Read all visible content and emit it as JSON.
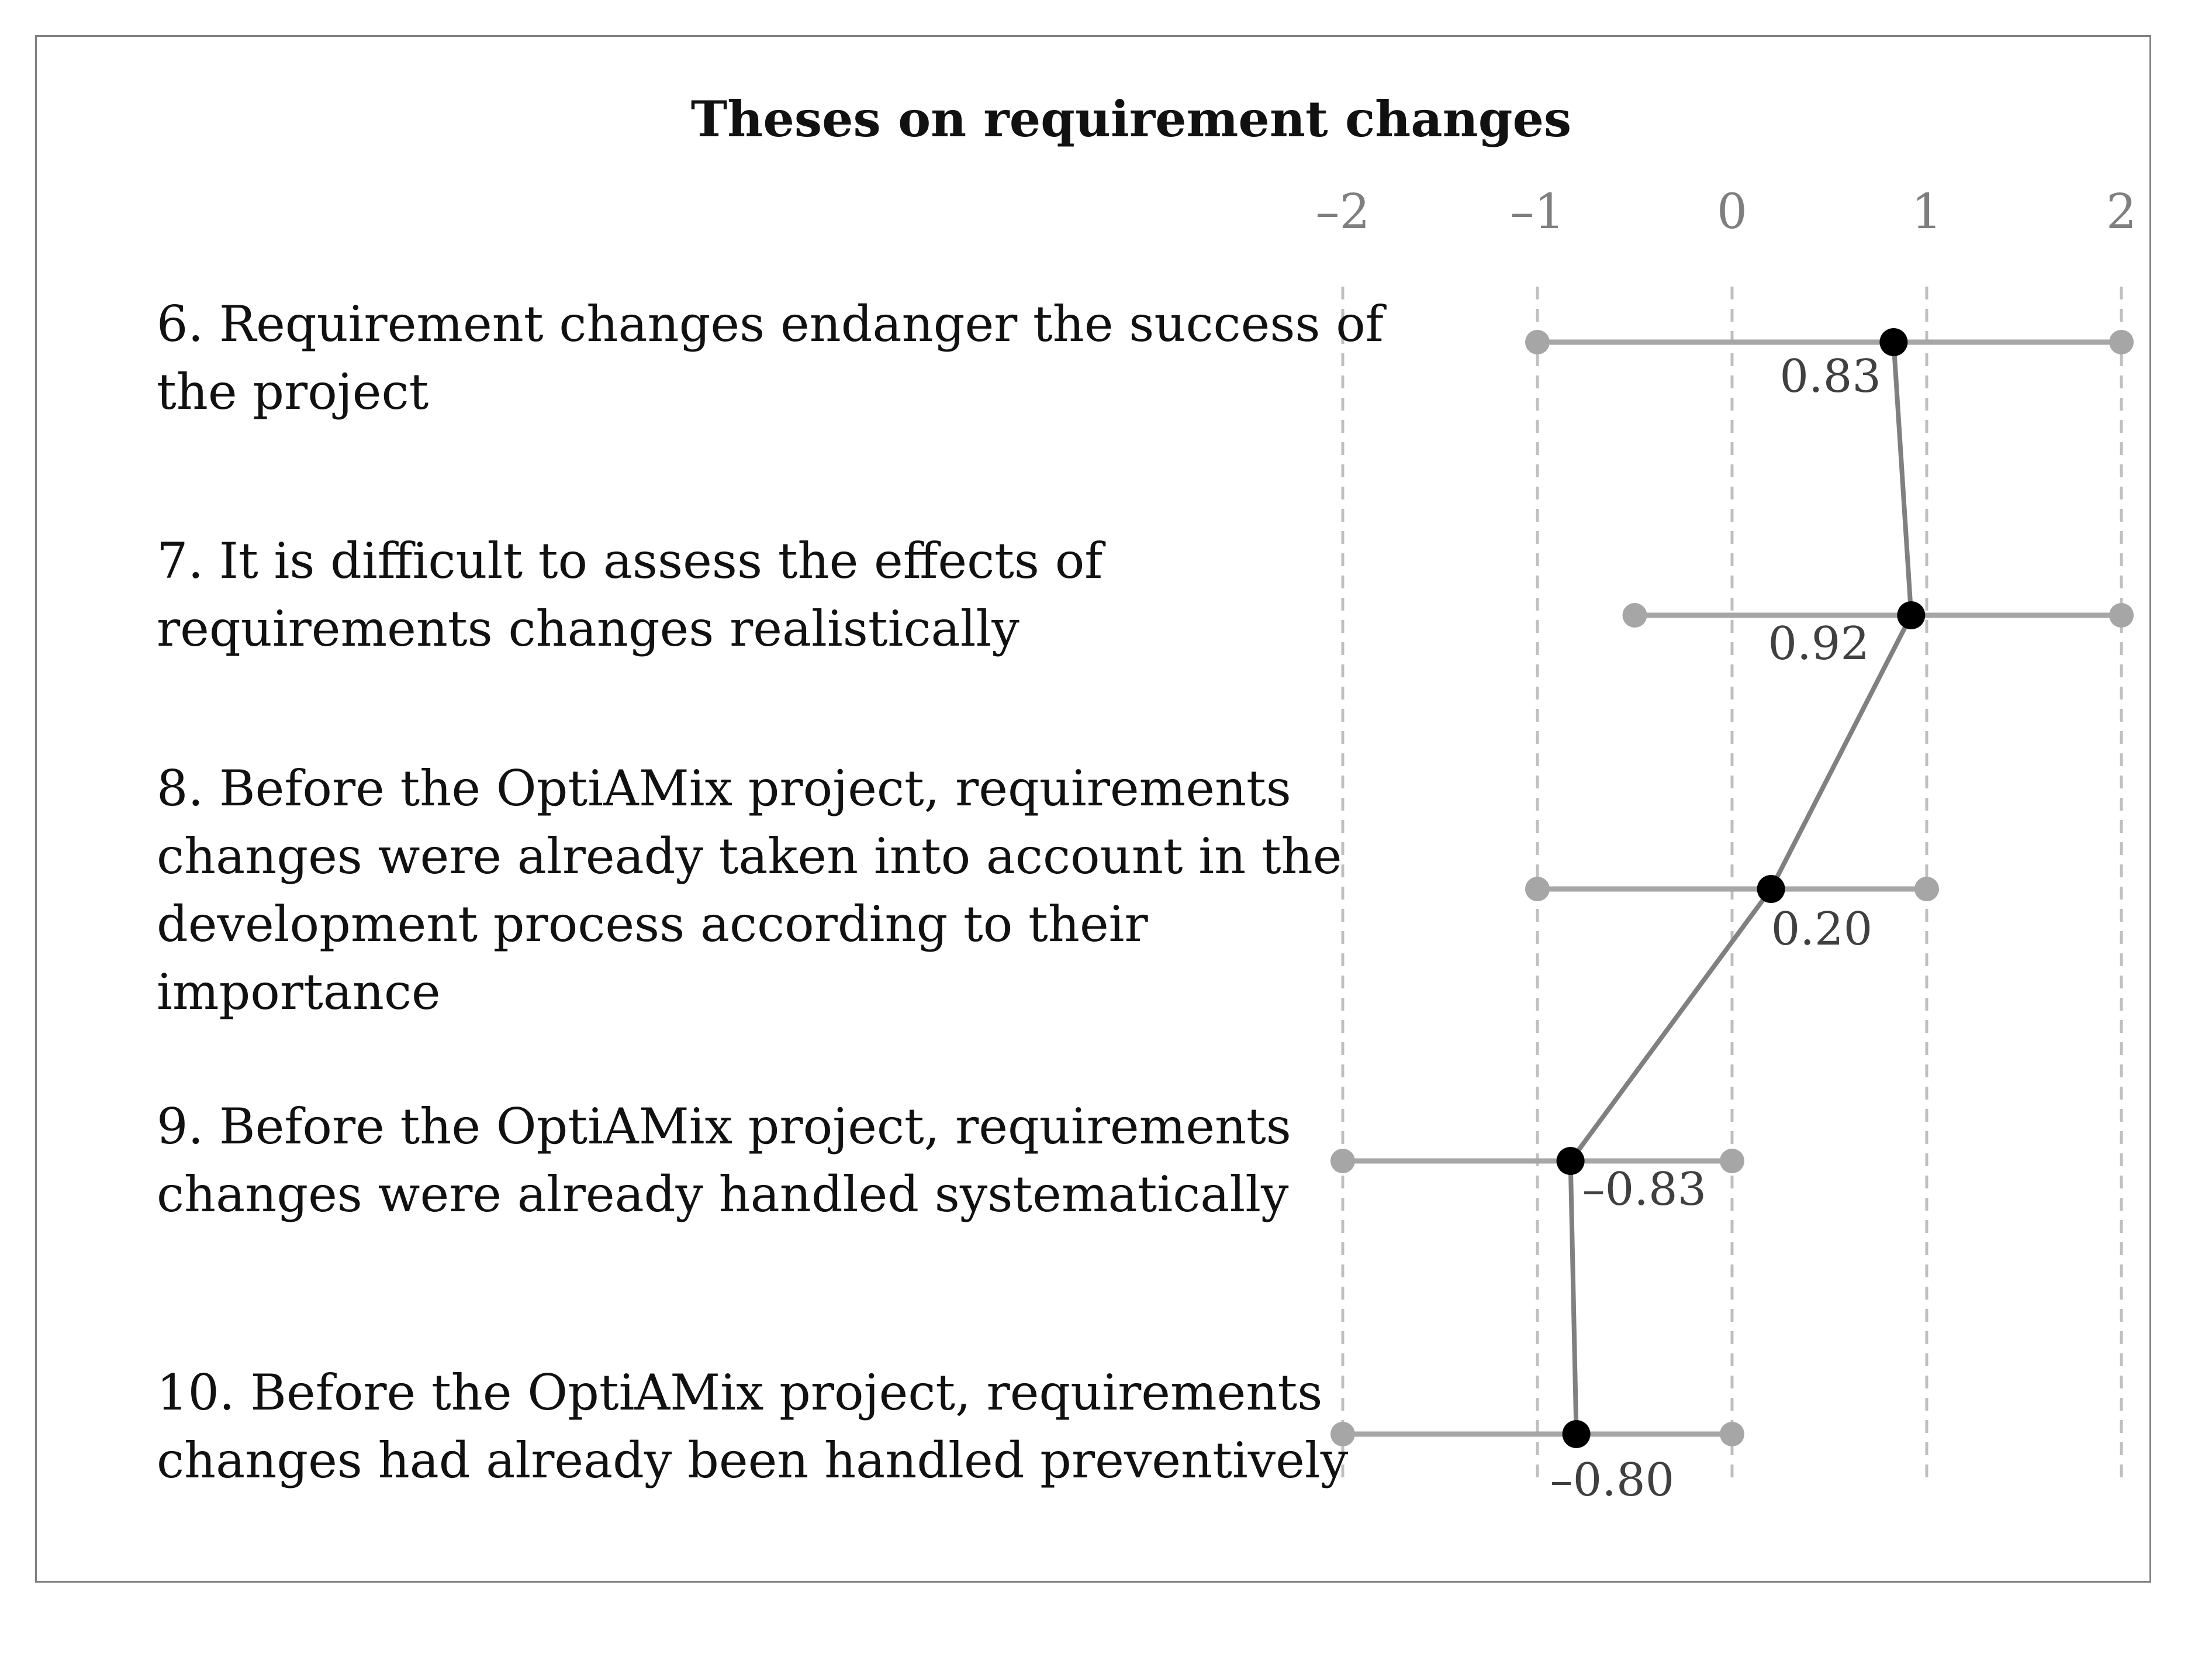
{
  "chart_data": {
    "type": "dot-range",
    "title": "Theses on requirement changes",
    "xlim": [
      -2,
      2
    ],
    "x_ticks": [
      -2,
      -1,
      0,
      1,
      2
    ],
    "x_tick_labels": [
      "–2",
      "–1",
      "0",
      "1",
      "2"
    ],
    "grid": "vertical dashed at ticks",
    "series": [
      {
        "name": "mean",
        "items": [
          {
            "statement_lines": [
              "6. Requirement changes endanger the success of",
              "the project"
            ],
            "mean": 0.83,
            "min": -1,
            "max": 2,
            "value_label": "0.83"
          },
          {
            "statement_lines": [
              "7. It is difficult to assess the effects of",
              "requirements changes realistically"
            ],
            "mean": 0.92,
            "min": -0.5,
            "max": 2,
            "value_label": "0.92"
          },
          {
            "statement_lines": [
              "8. Before the OptiAMix project, requirements",
              "changes were already taken into account in the",
              "development process according to their",
              "importance"
            ],
            "mean": 0.2,
            "min": -1,
            "max": 1,
            "value_label": "0.20"
          },
          {
            "statement_lines": [
              "9. Before the OptiAMix project, requirements",
              "changes were already handled systematically"
            ],
            "mean": -0.83,
            "min": -2,
            "max": 0,
            "value_label": "–0.83"
          },
          {
            "statement_lines": [
              "10. Before the OptiAMix project, requirements",
              "changes had already been handled preventively"
            ],
            "mean": -0.8,
            "min": -2,
            "max": 0,
            "value_label": "–0.80"
          }
        ]
      }
    ],
    "colors": {
      "range": "#a6a6a6",
      "mean_dot": "#000000",
      "connector": "#808080",
      "grid": "#bfbfbf"
    }
  }
}
